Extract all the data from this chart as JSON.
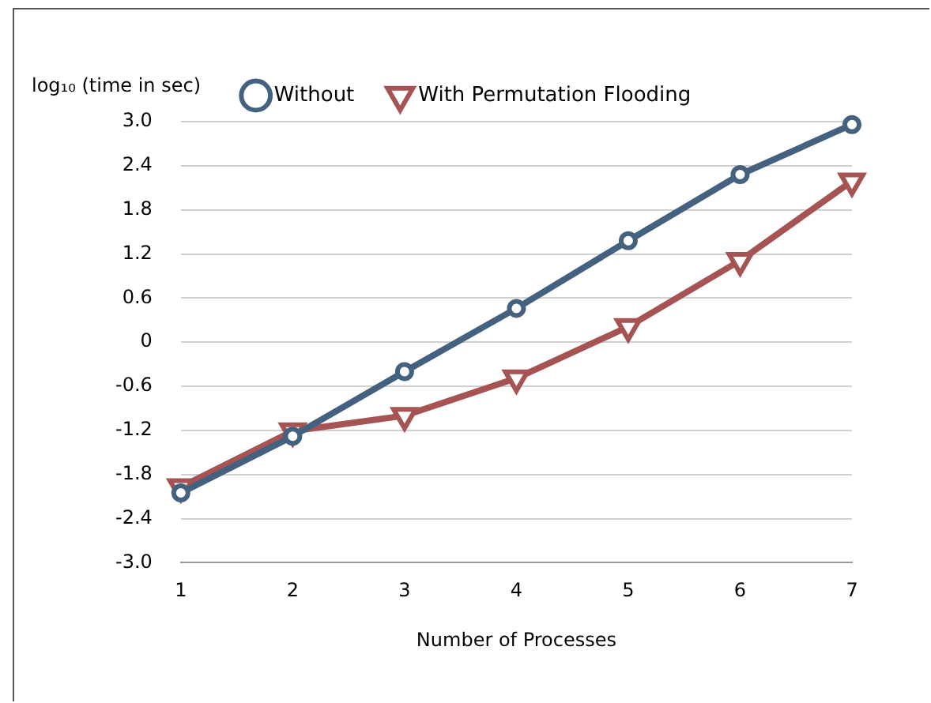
{
  "chart_data": {
    "type": "line",
    "xlabel": "Number of Processes",
    "ylabel": "log₁₀ (time in sec)",
    "x": [
      1,
      2,
      3,
      4,
      5,
      6,
      7
    ],
    "xlim": [
      1,
      7
    ],
    "xticks": [
      1,
      2,
      3,
      4,
      5,
      6,
      7
    ],
    "ylim": [
      -3,
      3
    ],
    "yticks": [
      {
        "value": -3,
        "label": "-3.0"
      },
      -2.4,
      -1.8,
      -1.2,
      -0.6,
      0,
      0.6,
      1.2,
      1.8,
      2.4,
      {
        "value": 3,
        "label": "3.0"
      }
    ],
    "grid": "y",
    "legend": "top",
    "line_style": "solid",
    "series": [
      {
        "name": "Without",
        "color": "#456180",
        "marker": "circle",
        "values": [
          -2.05,
          -1.28,
          -0.4,
          0.46,
          1.38,
          2.28,
          2.96
        ]
      },
      {
        "name": "With Permutation Flooding",
        "color": "#a65353",
        "marker": "triangle",
        "values": [
          -1.97,
          -1.21,
          -1.0,
          -0.49,
          0.21,
          1.11,
          2.19
        ]
      }
    ]
  }
}
